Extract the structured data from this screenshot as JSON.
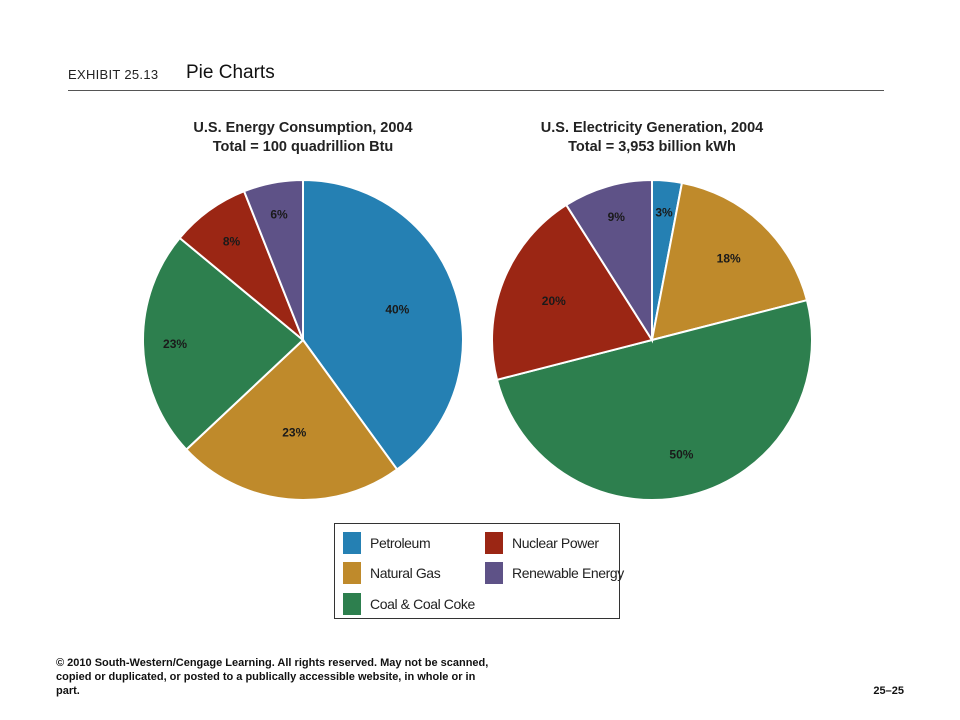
{
  "header": {
    "exhibit_label": "EXHIBIT 25.13",
    "title": "Pie Charts"
  },
  "colors": {
    "petroleum": "#2580B3",
    "natural_gas": "#BF8A2B",
    "coal": "#2D7F4E",
    "nuclear": "#9B2614",
    "renewable": "#5E5287"
  },
  "chart_data": [
    {
      "type": "pie",
      "title": "U.S. Energy Consumption, 2004",
      "subtitle": "Total = 100 quadrillion Btu",
      "slices": [
        {
          "label": "Petroleum",
          "value": 40,
          "value_label": "40%",
          "color": "#2580B3"
        },
        {
          "label": "Natural Gas",
          "value": 23,
          "value_label": "23%",
          "color": "#BF8A2B"
        },
        {
          "label": "Coal & Coal Coke",
          "value": 23,
          "value_label": "23%",
          "color": "#2D7F4E"
        },
        {
          "label": "Nuclear Power",
          "value": 8,
          "value_label": "8%",
          "color": "#9B2614"
        },
        {
          "label": "Renewable Energy",
          "value": 6,
          "value_label": "6%",
          "color": "#5E5287"
        }
      ]
    },
    {
      "type": "pie",
      "title": "U.S. Electricity Generation, 2004",
      "subtitle": "Total = 3,953 billion kWh",
      "slices": [
        {
          "label": "Petroleum",
          "value": 3,
          "value_label": "3%",
          "color": "#2580B3"
        },
        {
          "label": "Natural Gas",
          "value": 18,
          "value_label": "18%",
          "color": "#BF8A2B"
        },
        {
          "label": "Coal & Coal Coke",
          "value": 50,
          "value_label": "50%",
          "color": "#2D7F4E"
        },
        {
          "label": "Nuclear Power",
          "value": 20,
          "value_label": "20%",
          "color": "#9B2614"
        },
        {
          "label": "Renewable Energy",
          "value": 9,
          "value_label": "9%",
          "color": "#5E5287"
        }
      ]
    }
  ],
  "legend": {
    "placement": "bottom-center",
    "items": [
      {
        "label": "Petroleum",
        "color": "#2580B3"
      },
      {
        "label": "Nuclear Power",
        "color": "#9B2614"
      },
      {
        "label": "Natural Gas",
        "color": "#BF8A2B"
      },
      {
        "label": "Renewable Energy",
        "color": "#5E5287"
      },
      {
        "label": "Coal & Coal Coke",
        "color": "#2D7F4E"
      }
    ]
  },
  "footer": {
    "copyright": "© 2010 South-Western/Cengage Learning. All rights reserved. May not be scanned, copied or duplicated, or posted to a publically accessible website, in whole or in part.",
    "page_number": "25–25"
  }
}
